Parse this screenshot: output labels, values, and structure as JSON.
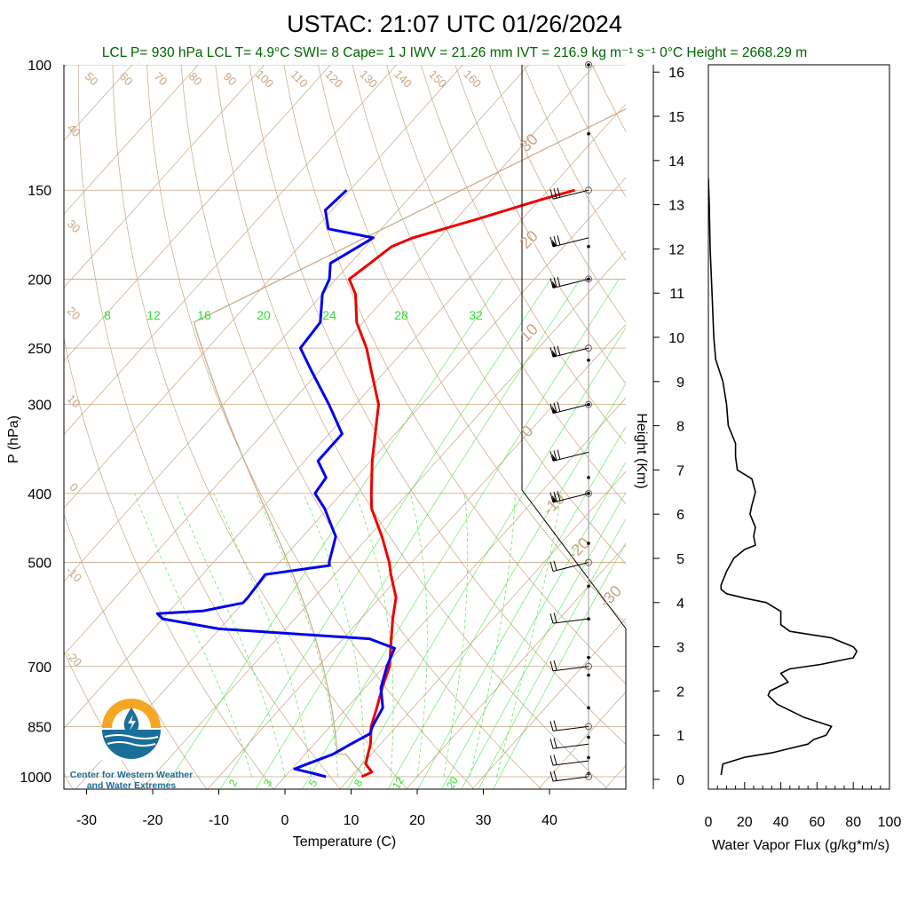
{
  "title": "USTAC: 21:07 UTC 01/26/2024",
  "subtitle": "LCL P= 930 hPa  LCL T= 4.9°C  SWI= 8  Cape= 1 J  IWV = 21.26 mm  IVT = 216.9 kg m⁻¹ s⁻¹  0°C Height = 2668.29 m",
  "logo": {
    "line1": "Center for Western Weather",
    "line2": "and Water Extremes"
  },
  "colors": {
    "temperature": "#ee0000",
    "dewpoint": "#0000ee",
    "dry_adiabat": "#c8a584",
    "mixing_ratio": "#33dd33",
    "flux": "#000000"
  },
  "chart_data": [
    {
      "type": "line",
      "chart_kind": "skew-T log-P",
      "xlabel": "Temperature (C)",
      "ylabel": "P (hPa)",
      "xlim": [
        -35,
        52
      ],
      "ylim": [
        1020,
        100
      ],
      "x_ticks": [
        -30,
        -20,
        -10,
        0,
        10,
        20,
        30,
        40
      ],
      "y_ticks": [
        100,
        150,
        200,
        250,
        300,
        400,
        500,
        700,
        850,
        1000
      ],
      "right_axis_label": "Height (Km)",
      "right_axis_ticks": [
        0,
        1,
        2,
        3,
        4,
        5,
        6,
        7,
        8,
        9,
        10,
        11,
        12,
        13,
        14,
        15,
        16
      ],
      "dry_adiabat_labels": [
        50,
        60,
        70,
        80,
        90,
        100,
        110,
        120,
        130,
        140,
        150,
        160
      ],
      "left_theta_labels": [
        40,
        30,
        20,
        10,
        0,
        -10,
        -20
      ],
      "right_theta_labels": [
        30,
        20,
        10,
        0,
        -10,
        -20,
        -30
      ],
      "mixing_ratio_labels_top": [
        8,
        12,
        16,
        20,
        24,
        28,
        32
      ],
      "mixing_ratio_labels_bottom": [
        2,
        3,
        5,
        8,
        12,
        20
      ],
      "series": [
        {
          "name": "Temperature",
          "pressure": [
            1000,
            985,
            960,
            930,
            900,
            850,
            800,
            750,
            700,
            650,
            600,
            560,
            520,
            500,
            460,
            420,
            400,
            360,
            330,
            300,
            270,
            250,
            230,
            210,
            200,
            190,
            180,
            175,
            165,
            155,
            150
          ],
          "temperature": [
            11.6,
            12.5,
            10.5,
            9.5,
            8.5,
            6.2,
            4.5,
            2.6,
            0.8,
            -2.1,
            -5.2,
            -7.6,
            -11.5,
            -13.4,
            -18.0,
            -23.4,
            -25.5,
            -29.8,
            -33.0,
            -36.5,
            -42.0,
            -46.0,
            -51.0,
            -55.0,
            -58.0,
            -57.0,
            -56.0,
            -54.0,
            -47.0,
            -40.0,
            -36.0
          ]
        },
        {
          "name": "Dewpoint",
          "pressure": [
            1000,
            990,
            975,
            960,
            930,
            900,
            870,
            850,
            800,
            750,
            700,
            660,
            640,
            620,
            600,
            590,
            585,
            570,
            560,
            520,
            505,
            500,
            460,
            420,
            400,
            380,
            360,
            330,
            300,
            270,
            250,
            230,
            210,
            200,
            190,
            180,
            175,
            170,
            160,
            150
          ],
          "dewpoint": [
            6.2,
            4.0,
            0.4,
            1.6,
            4.2,
            5.5,
            7.0,
            6.4,
            5.4,
            2.4,
            0.4,
            -0.9,
            -6.0,
            -30.0,
            -40.0,
            -41.5,
            -35.0,
            -30.0,
            -30.0,
            -30.5,
            -22.0,
            -22.5,
            -25.0,
            -30.5,
            -34.0,
            -34.5,
            -38.0,
            -38.0,
            -44.0,
            -51.0,
            -56.0,
            -56.5,
            -60.0,
            -61.0,
            -63.0,
            -61.0,
            -60.0,
            -68.0,
            -71.0,
            -70.5
          ]
        }
      ],
      "wind_barbs_pressure": [
        150,
        175,
        200,
        250,
        300,
        350,
        400,
        500,
        600,
        700,
        850,
        900,
        950,
        1000
      ]
    },
    {
      "type": "line",
      "xlabel": "Water Vapor Flux (g/kg*m/s)",
      "ylabel": "Height (Km)",
      "xlim": [
        0,
        100
      ],
      "ylim": [
        0,
        16.5
      ],
      "x_ticks": [
        0,
        20,
        40,
        60,
        80,
        100
      ],
      "y_ticks": [
        0,
        1,
        2,
        3,
        4,
        5,
        6,
        7,
        8,
        9,
        10,
        11,
        12,
        13,
        14,
        15,
        16
      ],
      "series": [
        {
          "name": "Water Vapor Flux",
          "height": [
            0.1,
            0.35,
            0.5,
            0.6,
            0.7,
            0.8,
            0.9,
            1.0,
            1.2,
            1.4,
            1.5,
            1.7,
            1.9,
            2.0,
            2.2,
            2.4,
            2.5,
            2.6,
            2.75,
            2.9,
            3.0,
            3.2,
            3.35,
            3.5,
            3.8,
            4.0,
            4.1,
            4.2,
            4.3,
            4.4,
            4.7,
            5.0,
            5.2,
            5.3,
            5.5,
            5.7,
            6.0,
            6.2,
            6.5,
            6.8,
            7.0,
            7.3,
            7.6,
            8.0,
            8.5,
            9.0,
            9.5,
            10.0,
            11.0,
            12.0,
            13.0,
            13.6
          ],
          "flux": [
            7,
            8,
            20,
            35,
            45,
            55,
            58,
            65,
            68,
            53,
            48,
            38,
            33,
            34,
            44,
            40,
            45,
            62,
            80,
            82,
            80,
            68,
            45,
            40,
            40,
            32,
            20,
            10,
            7,
            7,
            10,
            14,
            20,
            26,
            25,
            26,
            23,
            24,
            26,
            24,
            16,
            15,
            15,
            11,
            10,
            8,
            4,
            3,
            2,
            1,
            0.5,
            0
          ]
        }
      ]
    }
  ]
}
